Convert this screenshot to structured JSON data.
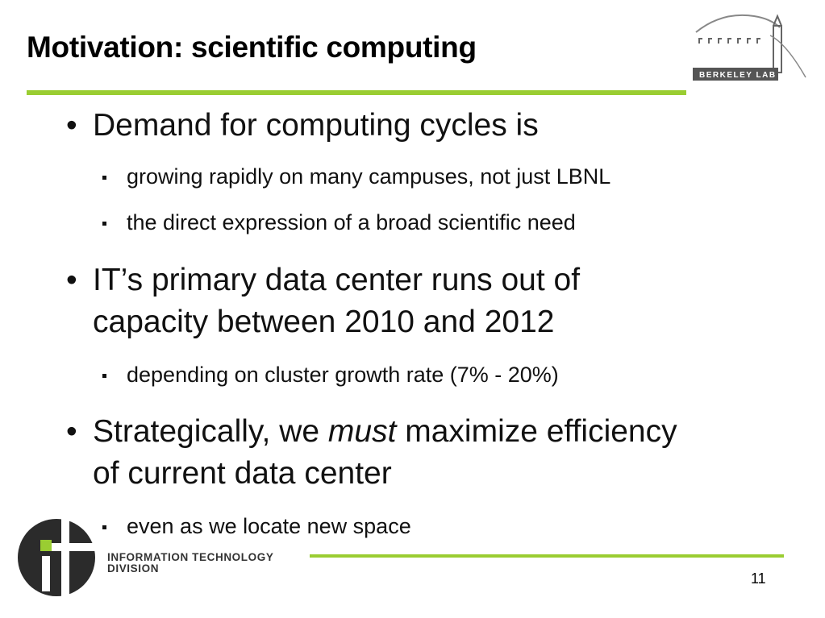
{
  "slide": {
    "title": "Motivation: scientific computing",
    "number": "11"
  },
  "logos": {
    "top_right": {
      "icon": "berkeley-lab-logo-icon",
      "text": "BERKELEY LAB"
    },
    "bottom_left": {
      "icon": "it-division-logo-icon",
      "line1": "INFORMATION TECHNOLOGY",
      "line2": "DIVISION"
    }
  },
  "bullets": [
    {
      "text": "Demand for computing cycles is",
      "sub": [
        "growing rapidly on many campuses, not just LBNL",
        "the direct expression of a broad scientific need"
      ]
    },
    {
      "text_line1": "IT’s primary data center runs out of",
      "text_line2": "capacity between 2010 and 2012",
      "sub": [
        "depending on cluster growth rate (7% - 20%)"
      ]
    },
    {
      "text_pre": "Strategically, we ",
      "text_emph": "must",
      "text_post": " maximize efficiency",
      "text_line2": "of current data center",
      "sub": [
        "even as we locate new space"
      ]
    }
  ],
  "colors": {
    "accent_green": "#9acd32",
    "text": "#111111",
    "logo_gray": "#555555"
  }
}
